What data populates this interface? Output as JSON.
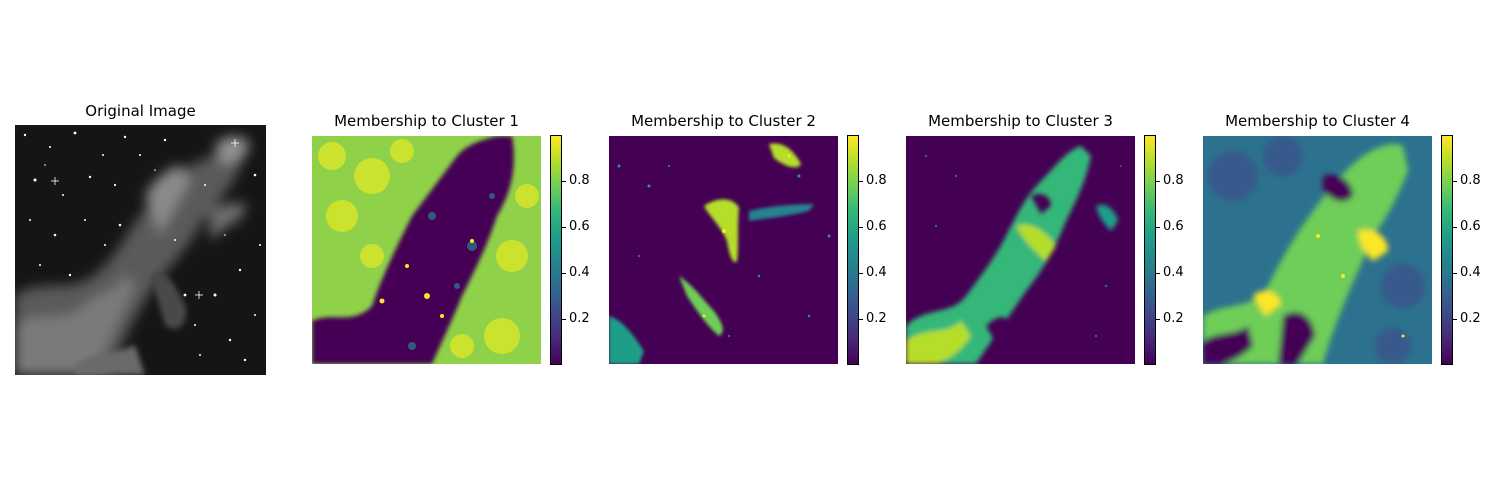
{
  "chart_data": [
    {
      "type": "image",
      "title": "Original Image",
      "colormap": "gray",
      "colorbar": false
    },
    {
      "type": "heatmap",
      "title": "Membership to Cluster 1",
      "colormap": "viridis",
      "colorbar": true,
      "colorbar_ticks": [
        "0.2",
        "0.4",
        "0.6",
        "0.8"
      ],
      "colorbar_range": [
        0,
        1
      ]
    },
    {
      "type": "heatmap",
      "title": "Membership to Cluster 2",
      "colormap": "viridis",
      "colorbar": true,
      "colorbar_ticks": [
        "0.2",
        "0.4",
        "0.6",
        "0.8"
      ],
      "colorbar_range": [
        0,
        1
      ]
    },
    {
      "type": "heatmap",
      "title": "Membership to Cluster 3",
      "colormap": "viridis",
      "colorbar": true,
      "colorbar_ticks": [
        "0.2",
        "0.4",
        "0.6",
        "0.8"
      ],
      "colorbar_range": [
        0,
        1
      ]
    },
    {
      "type": "heatmap",
      "title": "Membership to Cluster 4",
      "colormap": "viridis",
      "colorbar": true,
      "colorbar_ticks": [
        "0.2",
        "0.4",
        "0.6",
        "0.8"
      ],
      "colorbar_range": [
        0,
        1
      ]
    }
  ]
}
